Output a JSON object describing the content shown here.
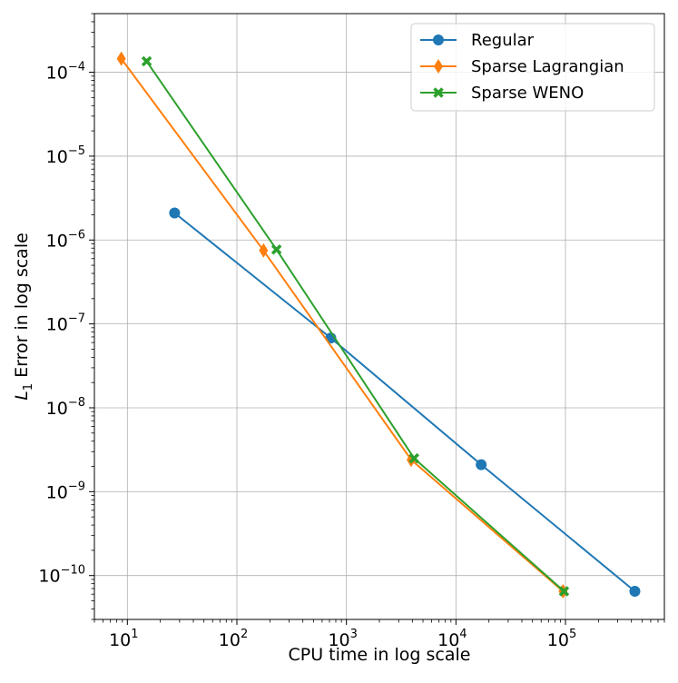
{
  "chart_data": {
    "type": "line",
    "title": "",
    "xlabel": "CPU time in log scale",
    "ylabel": {
      "var": "L",
      "sub": "1",
      "rest": " Error in log scale"
    },
    "x_scale": "log",
    "y_scale": "log",
    "xlim": [
      5,
      800000
    ],
    "ylim": [
      3e-11,
      0.0005
    ],
    "grid": true,
    "legend_position": "top-right",
    "x_ticks": [
      {
        "value": 10,
        "base": "10",
        "exp": "1"
      },
      {
        "value": 100,
        "base": "10",
        "exp": "2"
      },
      {
        "value": 1000,
        "base": "10",
        "exp": "3"
      },
      {
        "value": 10000,
        "base": "10",
        "exp": "4"
      },
      {
        "value": 100000,
        "base": "10",
        "exp": "5"
      }
    ],
    "y_ticks": [
      {
        "value": 1e-10,
        "base": "10",
        "exp": "−10"
      },
      {
        "value": 1e-09,
        "base": "10",
        "exp": "−9"
      },
      {
        "value": 1e-08,
        "base": "10",
        "exp": "−8"
      },
      {
        "value": 1e-07,
        "base": "10",
        "exp": "−7"
      },
      {
        "value": 1e-06,
        "base": "10",
        "exp": "−6"
      },
      {
        "value": 1e-05,
        "base": "10",
        "exp": "−5"
      },
      {
        "value": 0.0001,
        "base": "10",
        "exp": "−4"
      }
    ],
    "series": [
      {
        "name": "Regular",
        "color": "#1f77b4",
        "marker": "circle",
        "x": [
          27,
          720,
          17000,
          430000
        ],
        "y": [
          2.1e-06,
          6.8e-08,
          2.1e-09,
          6.5e-11
        ]
      },
      {
        "name": "Sparse Lagrangian",
        "color": "#ff7f0e",
        "marker": "diamond",
        "x": [
          8.8,
          175,
          3900,
          95000
        ],
        "y": [
          0.000145,
          7.5e-07,
          2.4e-09,
          6.5e-11
        ]
      },
      {
        "name": "Sparse WENO",
        "color": "#2ca02c",
        "marker": "x",
        "x": [
          15,
          230,
          4150,
          97000
        ],
        "y": [
          0.000135,
          7.7e-07,
          2.5e-09,
          6.5e-11
        ]
      }
    ]
  }
}
